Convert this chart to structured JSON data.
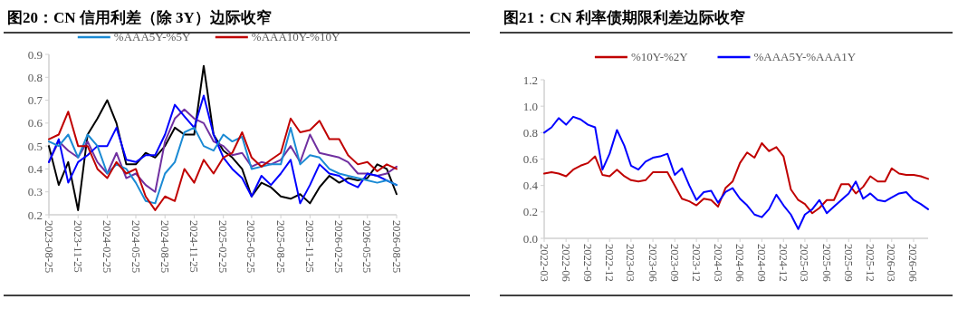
{
  "chart_data": [
    {
      "type": "line",
      "title": "图20：CN 信用利差（除 3Y）边际收窄",
      "legend": "top",
      "x": [
        "2023-08-25",
        "2023-09-25",
        "2023-10-25",
        "2023-11-25",
        "2023-12-25",
        "2024-01-25",
        "2024-02-25",
        "2024-03-25",
        "2024-04-25",
        "2024-05-25",
        "2024-06-25",
        "2024-07-25",
        "2024-08-25",
        "2024-09-25",
        "2024-10-25",
        "2024-11-25",
        "2024-12-25",
        "2025-01-25",
        "2025-02-25",
        "2025-03-25",
        "2025-04-25",
        "2025-05-25",
        "2025-06-25",
        "2025-07-25",
        "2025-08-25",
        "2025-09-25",
        "2025-10-25",
        "2025-11-25",
        "2025-12-25",
        "2026-01-25",
        "2026-02-25",
        "2026-03-25",
        "2026-04-25",
        "2026-05-25",
        "2026-06-25",
        "2026-07-25",
        "2026-08-25"
      ],
      "xlim": [
        "2023-08-25",
        "2026-08-25"
      ],
      "xticks": [
        "2023-08-25",
        "2023-11-25",
        "2024-02-25",
        "2024-05-25",
        "2024-08-25",
        "2024-11-25",
        "2025-02-25",
        "2025-05-25",
        "2025-08-25",
        "2025-11-25",
        "2026-02-25",
        "2026-05-25",
        "2026-08-25"
      ],
      "ylim": [
        0.2,
        0.9
      ],
      "yticks": [
        0.2,
        0.3,
        0.4,
        0.5,
        0.6,
        0.7,
        0.8,
        0.9
      ],
      "series": [
        {
          "color": "#000000",
          "values": [
            0.5,
            0.33,
            0.43,
            0.22,
            0.55,
            0.62,
            0.7,
            0.6,
            0.42,
            0.42,
            0.47,
            0.45,
            0.5,
            0.58,
            0.55,
            0.55,
            0.85,
            0.55,
            0.48,
            0.45,
            0.4,
            0.28,
            0.34,
            0.32,
            0.28,
            0.27,
            0.29,
            0.25,
            0.32,
            0.37,
            0.34,
            0.36,
            0.35,
            0.36,
            0.42,
            0.4,
            0.29
          ]
        },
        {
          "color": "#7030a0",
          "values": [
            0.43,
            0.52,
            0.48,
            0.45,
            0.52,
            0.43,
            0.38,
            0.47,
            0.36,
            0.38,
            0.33,
            0.3,
            0.52,
            0.62,
            0.66,
            0.62,
            0.6,
            0.52,
            0.5,
            0.46,
            0.47,
            0.41,
            0.43,
            0.42,
            0.44,
            0.5,
            0.43,
            0.55,
            0.47,
            0.46,
            0.45,
            0.43,
            0.38,
            0.38,
            0.37,
            0.38,
            0.41
          ]
        },
        {
          "color": "#0000ff",
          "values": [
            0.43,
            0.53,
            0.34,
            0.43,
            0.46,
            0.5,
            0.5,
            0.58,
            0.44,
            0.43,
            0.46,
            0.46,
            0.55,
            0.68,
            0.63,
            0.58,
            0.72,
            0.55,
            0.45,
            0.4,
            0.36,
            0.28,
            0.37,
            0.33,
            0.38,
            0.44,
            0.25,
            0.33,
            0.42,
            0.38,
            0.37,
            0.34,
            0.32,
            0.38,
            0.37,
            0.35,
            0.33
          ]
        },
        {
          "name": "%AAA5Y-%5Y",
          "color": "#1a8ad4",
          "values": [
            0.52,
            0.5,
            0.55,
            0.45,
            0.55,
            0.5,
            0.38,
            0.42,
            0.4,
            0.34,
            0.26,
            0.25,
            0.38,
            0.43,
            0.56,
            0.58,
            0.5,
            0.48,
            0.55,
            0.52,
            0.54,
            0.4,
            0.41,
            0.42,
            0.42,
            0.58,
            0.42,
            0.46,
            0.45,
            0.4,
            0.38,
            0.37,
            0.36,
            0.35,
            0.34,
            0.35,
            0.33
          ]
        },
        {
          "name": "%AAA10Y-%10Y",
          "color": "#c00000",
          "values": [
            0.53,
            0.55,
            0.65,
            0.5,
            0.5,
            0.4,
            0.36,
            0.43,
            0.38,
            0.4,
            0.28,
            0.22,
            0.28,
            0.26,
            0.4,
            0.34,
            0.44,
            0.38,
            0.45,
            0.47,
            0.56,
            0.45,
            0.41,
            0.44,
            0.47,
            0.62,
            0.56,
            0.57,
            0.61,
            0.53,
            0.53,
            0.46,
            0.42,
            0.43,
            0.39,
            0.42,
            0.4
          ]
        }
      ]
    },
    {
      "type": "line",
      "title": "图21：CN 利率债期限利差边际收窄",
      "legend": "top",
      "x": [
        "2022-03",
        "2022-04",
        "2022-05",
        "2022-06",
        "2022-07",
        "2022-08",
        "2022-09",
        "2022-10",
        "2022-11",
        "2022-12",
        "2023-01",
        "2023-02",
        "2023-03",
        "2023-04",
        "2023-05",
        "2023-06",
        "2023-07",
        "2023-08",
        "2023-09",
        "2023-10",
        "2023-11",
        "2023-12",
        "2024-01",
        "2024-02",
        "2024-03",
        "2024-04",
        "2024-05",
        "2024-06",
        "2024-07",
        "2024-08",
        "2024-09",
        "2024-10",
        "2024-11",
        "2024-12",
        "2025-01",
        "2025-02",
        "2025-03",
        "2025-04",
        "2025-05",
        "2025-06",
        "2025-07",
        "2025-08",
        "2025-09",
        "2025-10",
        "2025-11",
        "2025-12",
        "2026-01",
        "2026-02",
        "2026-03",
        "2026-04",
        "2026-05",
        "2026-06",
        "2026-07",
        "2026-08"
      ],
      "xlim": [
        "2022-03",
        "2026-08"
      ],
      "xticks": [
        "2022-03",
        "2022-06",
        "2022-09",
        "2022-12",
        "2023-03",
        "2023-06",
        "2023-09",
        "2023-12",
        "2024-03",
        "2024-06",
        "2024-09",
        "2024-12",
        "2025-03",
        "2025-06",
        "2025-09",
        "2025-12",
        "2026-03",
        "2026-06"
      ],
      "ylim": [
        0,
        1.2
      ],
      "yticks": [
        {
          "value": 0,
          "label": "0.0"
        },
        0.2,
        0.4,
        0.6,
        0.8,
        {
          "value": 1,
          "label": "1.0"
        },
        1.2
      ],
      "series": [
        {
          "name": "%10Y-%2Y",
          "color": "#c00000",
          "values": [
            0.49,
            0.5,
            0.49,
            0.47,
            0.52,
            0.55,
            0.57,
            0.62,
            0.48,
            0.47,
            0.52,
            0.47,
            0.44,
            0.43,
            0.44,
            0.5,
            0.5,
            0.5,
            0.4,
            0.3,
            0.28,
            0.25,
            0.3,
            0.29,
            0.24,
            0.38,
            0.43,
            0.57,
            0.65,
            0.61,
            0.72,
            0.66,
            0.69,
            0.62,
            0.37,
            0.29,
            0.26,
            0.19,
            0.23,
            0.29,
            0.29,
            0.41,
            0.41,
            0.34,
            0.39,
            0.47,
            0.43,
            0.43,
            0.53,
            0.49,
            0.48,
            0.48,
            0.47,
            0.45
          ]
        },
        {
          "name": "%AAA5Y-%AAA1Y",
          "color": "#0000ff",
          "values": [
            0.8,
            0.84,
            0.91,
            0.86,
            0.92,
            0.9,
            0.86,
            0.84,
            0.52,
            0.64,
            0.82,
            0.7,
            0.55,
            0.52,
            0.58,
            0.61,
            0.62,
            0.64,
            0.48,
            0.53,
            0.4,
            0.29,
            0.35,
            0.36,
            0.27,
            0.35,
            0.38,
            0.3,
            0.25,
            0.18,
            0.16,
            0.22,
            0.33,
            0.25,
            0.18,
            0.07,
            0.18,
            0.22,
            0.29,
            0.19,
            0.24,
            0.29,
            0.34,
            0.43,
            0.3,
            0.34,
            0.29,
            0.28,
            0.31,
            0.34,
            0.35,
            0.29,
            0.26,
            0.22
          ]
        }
      ]
    }
  ]
}
